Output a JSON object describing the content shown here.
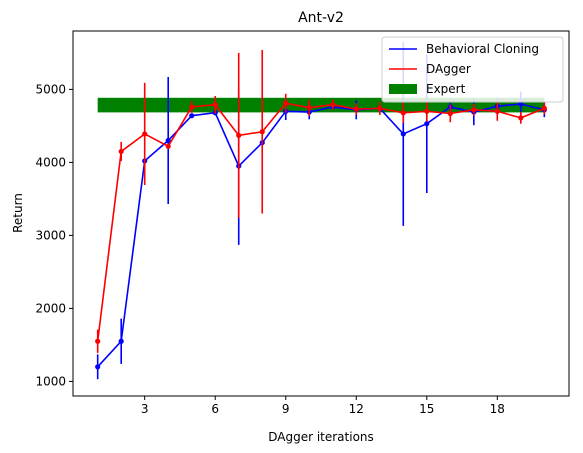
{
  "chart_data": {
    "type": "line",
    "title": "Ant-v2",
    "xlabel": "DAgger iterations",
    "ylabel": "Return",
    "xlim": [
      -0.05,
      21.05
    ],
    "ylim": [
      800,
      5800
    ],
    "xticks": [
      3,
      6,
      9,
      12,
      15,
      18
    ],
    "yticks": [
      1000,
      2000,
      3000,
      4000,
      5000
    ],
    "grid": false,
    "legend_position": "top-right",
    "x": [
      1,
      2,
      3,
      4,
      5,
      6,
      7,
      8,
      9,
      10,
      11,
      12,
      13,
      14,
      15,
      16,
      17,
      18,
      19,
      20
    ],
    "series": [
      {
        "name": "Behavioral Cloning",
        "color": "#0000ff",
        "values": [
          1200,
          1550,
          4020,
          4300,
          4640,
          4680,
          3950,
          4270,
          4700,
          4690,
          4760,
          4720,
          4740,
          4390,
          4530,
          4760,
          4690,
          4770,
          4800,
          4720
        ],
        "errors": [
          170,
          310,
          30,
          870,
          30,
          30,
          1080,
          20,
          120,
          100,
          40,
          130,
          60,
          1260,
          950,
          60,
          180,
          120,
          170,
          100
        ]
      },
      {
        "name": "DAgger",
        "color": "#ff0000",
        "values": [
          1550,
          4150,
          4390,
          4220,
          4760,
          4790,
          4370,
          4420,
          4810,
          4750,
          4790,
          4730,
          4740,
          4680,
          4700,
          4670,
          4720,
          4700,
          4610,
          4740
        ],
        "errors": [
          160,
          130,
          700,
          30,
          80,
          120,
          1130,
          1120,
          130,
          110,
          70,
          80,
          90,
          140,
          140,
          120,
          80,
          130,
          80,
          80
        ]
      }
    ],
    "expert": {
      "name": "Expert",
      "color": "#008000",
      "x_range": [
        1,
        20
      ],
      "y_range": [
        4685,
        4885
      ]
    }
  }
}
